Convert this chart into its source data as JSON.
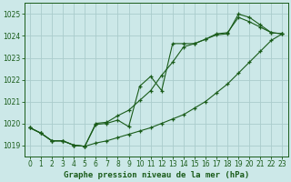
{
  "title": "Graphe pression niveau de la mer (hPa)",
  "bg_color": "#cce8e8",
  "grid_color": "#aacccc",
  "line_color": "#1a5c1a",
  "xlim": [
    -0.5,
    23.5
  ],
  "ylim": [
    1018.5,
    1025.5
  ],
  "yticks": [
    1019,
    1020,
    1021,
    1022,
    1023,
    1024,
    1025
  ],
  "xticks": [
    0,
    1,
    2,
    3,
    4,
    5,
    6,
    7,
    8,
    9,
    10,
    11,
    12,
    13,
    14,
    15,
    16,
    17,
    18,
    19,
    20,
    21,
    22,
    23
  ],
  "line1_x": [
    0,
    1,
    2,
    3,
    4,
    5,
    6,
    7,
    8,
    9,
    10,
    11,
    12,
    13,
    14,
    15,
    16,
    17,
    18,
    19,
    20,
    21,
    22,
    23
  ],
  "line1_y": [
    1019.8,
    1019.55,
    1019.2,
    1019.2,
    1019.0,
    1018.95,
    1019.1,
    1019.2,
    1019.35,
    1019.5,
    1019.65,
    1019.8,
    1020.0,
    1020.2,
    1020.4,
    1020.7,
    1021.0,
    1021.4,
    1021.8,
    1022.3,
    1022.8,
    1023.3,
    1023.8,
    1024.1
  ],
  "line2_x": [
    0,
    1,
    2,
    3,
    4,
    5,
    6,
    7,
    8,
    9,
    10,
    11,
    12,
    13,
    14,
    15,
    16,
    17,
    18,
    19,
    20,
    21,
    22,
    23
  ],
  "line2_y": [
    1019.8,
    1019.55,
    1019.2,
    1019.2,
    1019.0,
    1018.95,
    1019.95,
    1020.0,
    1020.15,
    1019.85,
    1021.7,
    1022.15,
    1021.5,
    1023.65,
    1023.65,
    1023.65,
    1023.85,
    1024.05,
    1024.1,
    1025.0,
    1024.85,
    1024.5,
    1024.15,
    1024.1
  ],
  "line3_x": [
    0,
    1,
    2,
    3,
    4,
    5,
    6,
    7,
    8,
    9,
    10,
    11,
    12,
    13,
    14,
    15,
    16,
    17,
    18,
    19,
    20,
    21,
    22,
    23
  ],
  "line3_y": [
    1019.8,
    1019.55,
    1019.2,
    1019.2,
    1019.0,
    1018.95,
    1020.0,
    1020.05,
    1020.35,
    1020.6,
    1021.05,
    1021.5,
    1022.2,
    1022.8,
    1023.5,
    1023.65,
    1023.85,
    1024.1,
    1024.15,
    1024.85,
    1024.65,
    1024.4,
    1024.15,
    1024.1
  ]
}
